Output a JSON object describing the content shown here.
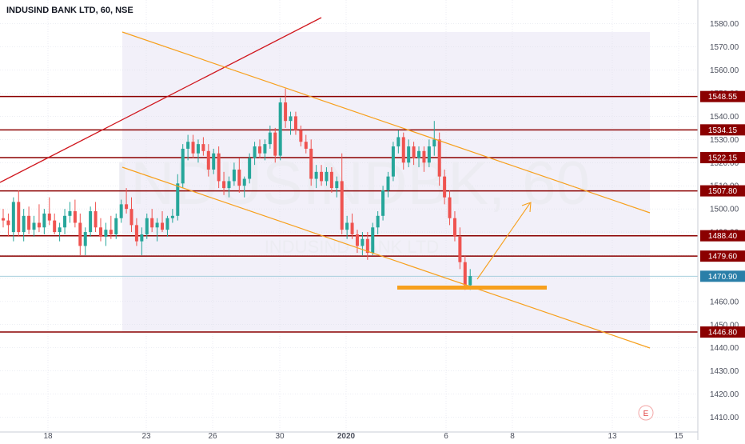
{
  "header": {
    "title": "INDUSIND BANK LTD, 60, NSE"
  },
  "watermark": {
    "symbol": "INDUSINDBK, 60",
    "name": "INDUSIND BANK LTD"
  },
  "event_marker": "E",
  "colors": {
    "up": "#26a69a",
    "down": "#ef5350",
    "level": "#8b0000",
    "channel": "#f7a01d",
    "trend": "#d0171e",
    "current": "#2a7fa8",
    "zone": "#eceaf7",
    "grid": "#d9dde8",
    "axis_text": "#4b4f5c"
  },
  "chart_data": {
    "type": "candlestick",
    "x_ticks": [
      "18",
      "23",
      "26",
      "30",
      "2020",
      "6",
      "8",
      "13",
      "15"
    ],
    "y_ticks": [
      1410,
      1420,
      1430,
      1440,
      1450,
      1460,
      1470,
      1480,
      1490,
      1500,
      1510,
      1520,
      1530,
      1540,
      1550,
      1560,
      1570,
      1580
    ],
    "ylim": [
      1405,
      1588
    ],
    "levels": [
      "1548.55",
      "1534.15",
      "1522.15",
      "1507.80",
      "1488.40",
      "1479.60",
      "1446.80"
    ],
    "current_price": "1470.90",
    "candles": [
      {
        "o": 1496,
        "h": 1500,
        "l": 1492,
        "c": 1495
      },
      {
        "o": 1495,
        "h": 1498,
        "l": 1488,
        "c": 1493
      },
      {
        "o": 1490,
        "h": 1505,
        "l": 1486,
        "c": 1503
      },
      {
        "o": 1503,
        "h": 1508,
        "l": 1488,
        "c": 1490
      },
      {
        "o": 1490,
        "h": 1500,
        "l": 1486,
        "c": 1497
      },
      {
        "o": 1497,
        "h": 1501,
        "l": 1489,
        "c": 1491
      },
      {
        "o": 1491,
        "h": 1497,
        "l": 1488,
        "c": 1494
      },
      {
        "o": 1494,
        "h": 1502,
        "l": 1490,
        "c": 1492
      },
      {
        "o": 1492,
        "h": 1500,
        "l": 1489,
        "c": 1498
      },
      {
        "o": 1498,
        "h": 1505,
        "l": 1493,
        "c": 1495
      },
      {
        "o": 1495,
        "h": 1498,
        "l": 1489,
        "c": 1490
      },
      {
        "o": 1490,
        "h": 1494,
        "l": 1486,
        "c": 1492
      },
      {
        "o": 1492,
        "h": 1500,
        "l": 1489,
        "c": 1497
      },
      {
        "o": 1497,
        "h": 1503,
        "l": 1494,
        "c": 1499
      },
      {
        "o": 1499,
        "h": 1504,
        "l": 1492,
        "c": 1494
      },
      {
        "o": 1494,
        "h": 1498,
        "l": 1480,
        "c": 1484
      },
      {
        "o": 1484,
        "h": 1492,
        "l": 1480,
        "c": 1490
      },
      {
        "o": 1490,
        "h": 1501,
        "l": 1488,
        "c": 1499
      },
      {
        "o": 1499,
        "h": 1503,
        "l": 1490,
        "c": 1492
      },
      {
        "o": 1492,
        "h": 1496,
        "l": 1486,
        "c": 1488
      },
      {
        "o": 1488,
        "h": 1494,
        "l": 1484,
        "c": 1491
      },
      {
        "o": 1491,
        "h": 1497,
        "l": 1487,
        "c": 1489
      },
      {
        "o": 1489,
        "h": 1498,
        "l": 1487,
        "c": 1496
      },
      {
        "o": 1496,
        "h": 1504,
        "l": 1494,
        "c": 1502
      },
      {
        "o": 1502,
        "h": 1509,
        "l": 1498,
        "c": 1500
      },
      {
        "o": 1500,
        "h": 1505,
        "l": 1490,
        "c": 1493
      },
      {
        "o": 1493,
        "h": 1496,
        "l": 1484,
        "c": 1486
      },
      {
        "o": 1486,
        "h": 1492,
        "l": 1480,
        "c": 1489
      },
      {
        "o": 1489,
        "h": 1498,
        "l": 1487,
        "c": 1496
      },
      {
        "o": 1496,
        "h": 1500,
        "l": 1490,
        "c": 1492
      },
      {
        "o": 1492,
        "h": 1496,
        "l": 1486,
        "c": 1494
      },
      {
        "o": 1494,
        "h": 1499,
        "l": 1490,
        "c": 1491
      },
      {
        "o": 1491,
        "h": 1497,
        "l": 1488,
        "c": 1496
      },
      {
        "o": 1496,
        "h": 1500,
        "l": 1494,
        "c": 1497
      },
      {
        "o": 1497,
        "h": 1515,
        "l": 1495,
        "c": 1511
      },
      {
        "o": 1511,
        "h": 1528,
        "l": 1509,
        "c": 1526
      },
      {
        "o": 1526,
        "h": 1532,
        "l": 1521,
        "c": 1529
      },
      {
        "o": 1529,
        "h": 1532,
        "l": 1522,
        "c": 1524
      },
      {
        "o": 1524,
        "h": 1530,
        "l": 1520,
        "c": 1528
      },
      {
        "o": 1528,
        "h": 1531,
        "l": 1523,
        "c": 1525
      },
      {
        "o": 1525,
        "h": 1528,
        "l": 1514,
        "c": 1517
      },
      {
        "o": 1517,
        "h": 1526,
        "l": 1515,
        "c": 1524
      },
      {
        "o": 1524,
        "h": 1527,
        "l": 1509,
        "c": 1512
      },
      {
        "o": 1512,
        "h": 1516,
        "l": 1506,
        "c": 1509
      },
      {
        "o": 1509,
        "h": 1514,
        "l": 1505,
        "c": 1512
      },
      {
        "o": 1512,
        "h": 1520,
        "l": 1510,
        "c": 1517
      },
      {
        "o": 1517,
        "h": 1522,
        "l": 1507,
        "c": 1510
      },
      {
        "o": 1510,
        "h": 1514,
        "l": 1505,
        "c": 1513
      },
      {
        "o": 1513,
        "h": 1524,
        "l": 1511,
        "c": 1522
      },
      {
        "o": 1522,
        "h": 1529,
        "l": 1519,
        "c": 1527
      },
      {
        "o": 1527,
        "h": 1530,
        "l": 1522,
        "c": 1524
      },
      {
        "o": 1524,
        "h": 1530,
        "l": 1521,
        "c": 1528
      },
      {
        "o": 1528,
        "h": 1536,
        "l": 1526,
        "c": 1533
      },
      {
        "o": 1533,
        "h": 1535,
        "l": 1520,
        "c": 1523
      },
      {
        "o": 1523,
        "h": 1548,
        "l": 1521,
        "c": 1546
      },
      {
        "o": 1546,
        "h": 1552,
        "l": 1535,
        "c": 1538
      },
      {
        "o": 1538,
        "h": 1542,
        "l": 1532,
        "c": 1540
      },
      {
        "o": 1540,
        "h": 1542,
        "l": 1532,
        "c": 1534
      },
      {
        "o": 1534,
        "h": 1536,
        "l": 1527,
        "c": 1529
      },
      {
        "o": 1529,
        "h": 1532,
        "l": 1524,
        "c": 1526
      },
      {
        "o": 1526,
        "h": 1530,
        "l": 1510,
        "c": 1513
      },
      {
        "o": 1513,
        "h": 1519,
        "l": 1509,
        "c": 1516
      },
      {
        "o": 1516,
        "h": 1519,
        "l": 1510,
        "c": 1512
      },
      {
        "o": 1512,
        "h": 1518,
        "l": 1510,
        "c": 1516
      },
      {
        "o": 1516,
        "h": 1518,
        "l": 1507,
        "c": 1509
      },
      {
        "o": 1509,
        "h": 1514,
        "l": 1505,
        "c": 1512
      },
      {
        "o": 1512,
        "h": 1524,
        "l": 1489,
        "c": 1491
      },
      {
        "o": 1491,
        "h": 1497,
        "l": 1487,
        "c": 1494
      },
      {
        "o": 1494,
        "h": 1498,
        "l": 1487,
        "c": 1489
      },
      {
        "o": 1489,
        "h": 1491,
        "l": 1481,
        "c": 1484
      },
      {
        "o": 1484,
        "h": 1490,
        "l": 1480,
        "c": 1487
      },
      {
        "o": 1487,
        "h": 1490,
        "l": 1478,
        "c": 1481
      },
      {
        "o": 1481,
        "h": 1494,
        "l": 1480,
        "c": 1492
      },
      {
        "o": 1492,
        "h": 1499,
        "l": 1489,
        "c": 1497
      },
      {
        "o": 1497,
        "h": 1510,
        "l": 1495,
        "c": 1508
      },
      {
        "o": 1508,
        "h": 1516,
        "l": 1505,
        "c": 1514
      },
      {
        "o": 1514,
        "h": 1529,
        "l": 1512,
        "c": 1527
      },
      {
        "o": 1527,
        "h": 1534,
        "l": 1524,
        "c": 1531
      },
      {
        "o": 1531,
        "h": 1533,
        "l": 1517,
        "c": 1520
      },
      {
        "o": 1520,
        "h": 1530,
        "l": 1518,
        "c": 1527
      },
      {
        "o": 1527,
        "h": 1529,
        "l": 1519,
        "c": 1522
      },
      {
        "o": 1522,
        "h": 1527,
        "l": 1518,
        "c": 1525
      },
      {
        "o": 1525,
        "h": 1527,
        "l": 1516,
        "c": 1520
      },
      {
        "o": 1520,
        "h": 1530,
        "l": 1518,
        "c": 1527
      },
      {
        "o": 1527,
        "h": 1538,
        "l": 1523,
        "c": 1530
      },
      {
        "o": 1530,
        "h": 1533,
        "l": 1510,
        "c": 1514
      },
      {
        "o": 1514,
        "h": 1517,
        "l": 1502,
        "c": 1505
      },
      {
        "o": 1505,
        "h": 1508,
        "l": 1493,
        "c": 1496
      },
      {
        "o": 1496,
        "h": 1499,
        "l": 1486,
        "c": 1488
      },
      {
        "o": 1488,
        "h": 1492,
        "l": 1474,
        "c": 1477
      },
      {
        "o": 1477,
        "h": 1480,
        "l": 1465,
        "c": 1467
      },
      {
        "o": 1467,
        "h": 1474,
        "l": 1465,
        "c": 1471
      }
    ]
  }
}
